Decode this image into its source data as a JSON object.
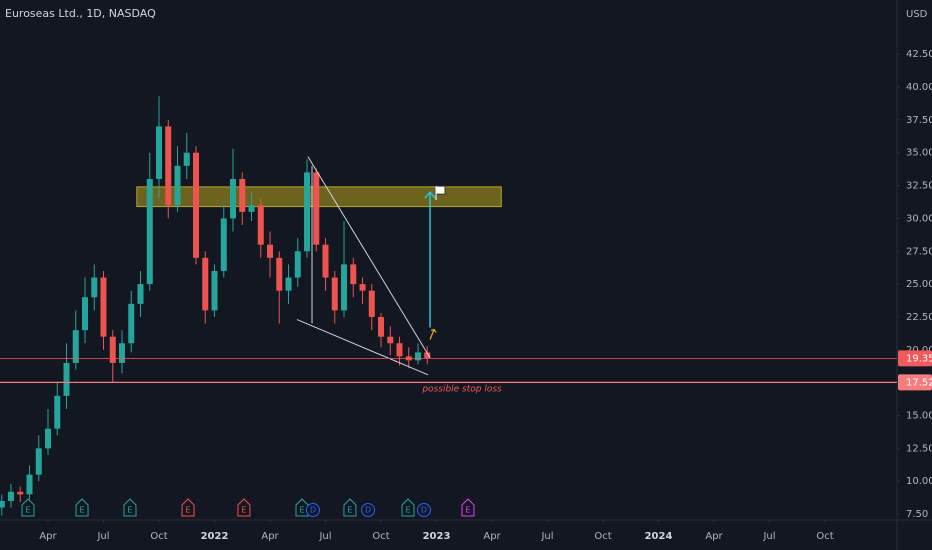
{
  "chart_data": {
    "type": "candlestick",
    "title": "Euroseas Ltd., 1D, NASDAQ",
    "currency": "USD",
    "x": [
      0.5,
      1,
      1.5,
      2,
      2.5,
      3,
      3.5,
      4,
      4.5,
      5,
      5.5,
      6,
      6.5,
      7,
      7.5,
      8,
      8.5,
      9,
      9.5,
      10,
      10.5,
      11,
      11.5,
      12,
      12.5,
      13,
      13.5,
      14,
      14.5,
      15,
      15.5,
      16,
      16.5,
      17,
      17.5,
      18,
      18.5,
      19,
      19.5,
      20,
      20.5,
      21,
      21.5,
      22,
      22.5,
      23,
      23.5
    ],
    "open": [
      8.0,
      8.5,
      9.2,
      9.0,
      10.5,
      12.5,
      14.0,
      16.5,
      19.0,
      21.5,
      24.0,
      25.5,
      21.0,
      19.0,
      20.5,
      23.5,
      25.0,
      33.0,
      37.0,
      31.0,
      34.0,
      35.0,
      27.0,
      23.0,
      26.0,
      30.0,
      33.0,
      30.5,
      31.0,
      28.0,
      27.0,
      24.5,
      25.5,
      27.5,
      33.5,
      28.0,
      25.5,
      23.0,
      26.5,
      25.0,
      24.5,
      22.5,
      21.0,
      20.5,
      19.5,
      19.2,
      19.8
    ],
    "high": [
      9.0,
      9.8,
      9.6,
      11.2,
      13.5,
      15.5,
      17.5,
      20.5,
      23.0,
      25.5,
      26.5,
      26.0,
      21.5,
      21.5,
      24.5,
      26.0,
      35.0,
      39.3,
      37.5,
      35.5,
      36.5,
      35.5,
      27.5,
      26.5,
      31.0,
      35.3,
      33.5,
      32.0,
      31.5,
      29.0,
      27.5,
      26.5,
      28.5,
      34.5,
      33.8,
      28.5,
      26.0,
      29.8,
      27.0,
      25.5,
      25.0,
      22.8,
      21.8,
      21.0,
      20.2,
      20.5,
      20.3
    ],
    "low": [
      7.4,
      8.0,
      8.4,
      8.6,
      10.0,
      12.0,
      13.5,
      15.5,
      18.5,
      20.5,
      23.0,
      20.0,
      17.5,
      18.2,
      19.8,
      22.5,
      24.5,
      31.5,
      30.0,
      30.5,
      33.0,
      26.5,
      22.0,
      22.5,
      25.5,
      29.0,
      29.5,
      29.8,
      27.0,
      25.5,
      22.0,
      23.5,
      24.8,
      27.0,
      27.5,
      24.5,
      22.0,
      22.5,
      24.0,
      23.5,
      21.5,
      20.2,
      19.6,
      18.8,
      18.6,
      18.9,
      18.9
    ],
    "close": [
      8.5,
      9.2,
      9.0,
      10.5,
      12.5,
      14.0,
      16.5,
      19.0,
      21.5,
      24.0,
      25.5,
      21.0,
      19.0,
      20.5,
      23.5,
      25.0,
      33.0,
      37.0,
      31.0,
      34.0,
      35.0,
      27.0,
      23.0,
      26.0,
      30.0,
      33.0,
      30.5,
      31.0,
      28.0,
      27.0,
      24.5,
      25.5,
      27.5,
      33.5,
      28.0,
      25.5,
      23.0,
      26.5,
      25.0,
      24.5,
      22.5,
      21.0,
      20.5,
      19.5,
      19.2,
      19.8,
      19.35
    ],
    "up_color": "#26a69a",
    "down_color": "#ef5350",
    "xlim": [
      0.405,
      48.89
    ],
    "xticks": [
      {
        "value": 3,
        "label": "Apr"
      },
      {
        "value": 6,
        "label": "Jul"
      },
      {
        "value": 9,
        "label": "Oct"
      },
      {
        "value": 12,
        "label": "2022"
      },
      {
        "value": 15,
        "label": "Apr"
      },
      {
        "value": 18,
        "label": "Jul"
      },
      {
        "value": 21,
        "label": "Oct"
      },
      {
        "value": 24,
        "label": "2023"
      },
      {
        "value": 27,
        "label": "Apr"
      },
      {
        "value": 30,
        "label": "Jul"
      },
      {
        "value": 33,
        "label": "Oct"
      },
      {
        "value": 36,
        "label": "2024"
      },
      {
        "value": 39,
        "label": "Apr"
      },
      {
        "value": 42,
        "label": "Jul"
      },
      {
        "value": 45,
        "label": "Oct"
      }
    ],
    "ylim": [
      7.05,
      46.62
    ],
    "yticks": [
      {
        "value": 7.5,
        "label": "7.50"
      },
      {
        "value": 10,
        "label": "10.00"
      },
      {
        "value": 12.5,
        "label": "12.50"
      },
      {
        "value": 15,
        "label": "15.00"
      },
      {
        "value": 20,
        "label": "20.00"
      },
      {
        "value": 22.5,
        "label": "22.50"
      },
      {
        "value": 25,
        "label": "25.00"
      },
      {
        "value": 27.5,
        "label": "27.50"
      },
      {
        "value": 30,
        "label": "30.00"
      },
      {
        "value": 32.5,
        "label": "32.50"
      },
      {
        "value": 35,
        "label": "35.00"
      },
      {
        "value": 37.5,
        "label": "37.50"
      },
      {
        "value": 40,
        "label": "40.00"
      },
      {
        "value": 42.5,
        "label": "42.50"
      }
    ],
    "price_lines": [
      {
        "value": 19.35,
        "color": "#f05a5a"
      },
      {
        "value": 17.52,
        "color": "#f77c80"
      }
    ],
    "zone": {
      "x": [
        7.8,
        27.5
      ],
      "y": [
        30.9,
        32.4
      ],
      "color": "#8a7d1e"
    },
    "wedge": [
      {
        "x": [
          17.05,
          23.65
        ],
        "y": [
          34.7,
          19.4
        ]
      },
      {
        "x": [
          16.46,
          23.54
        ],
        "y": [
          22.3,
          18.1
        ]
      },
      {
        "x": [
          17.27,
          17.27
        ],
        "y": [
          34.0,
          22.0
        ]
      }
    ],
    "target_arrow": {
      "x": 23.65,
      "y": [
        21.7,
        32.0
      ],
      "color": "#26c6da"
    },
    "annotation": {
      "text": "possible stop loss",
      "x": 25.38,
      "y": 17.0
    },
    "events": [
      {
        "label": "E",
        "x": 1.92,
        "color": "#26a69a"
      },
      {
        "label": "E",
        "x": 4.84,
        "color": "#26a69a"
      },
      {
        "label": "E",
        "x": 7.43,
        "color": "#26a69a"
      },
      {
        "label": "E",
        "x": 10.57,
        "color": "#ef5350"
      },
      {
        "label": "E",
        "x": 13.59,
        "color": "#ef5350"
      },
      {
        "label": "E",
        "x": 16.73,
        "color": "#26a69a"
      },
      {
        "label": "D",
        "x": 17.32,
        "color": "#2962ff"
      },
      {
        "label": "E",
        "x": 19.32,
        "color": "#26a69a"
      },
      {
        "label": "D",
        "x": 20.3,
        "color": "#2962ff"
      },
      {
        "label": "E",
        "x": 22.46,
        "color": "#26a69a"
      },
      {
        "label": "D",
        "x": 23.32,
        "color": "#2962ff"
      },
      {
        "label": "E",
        "x": 25.7,
        "color": "#e040fb"
      }
    ]
  }
}
